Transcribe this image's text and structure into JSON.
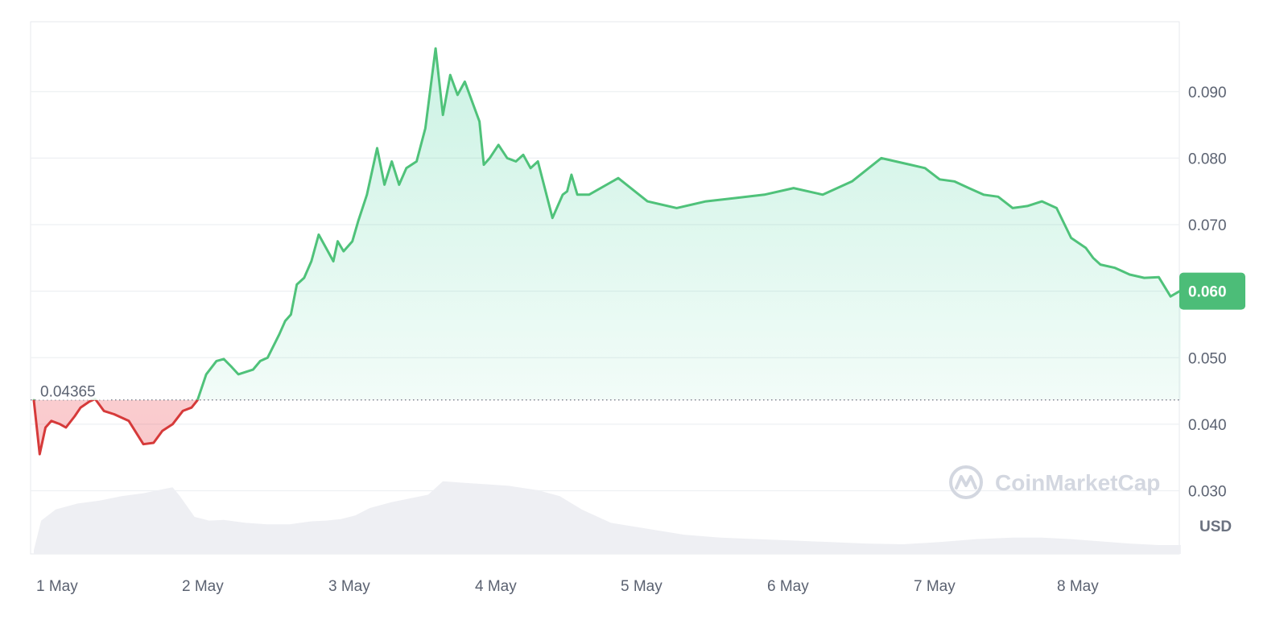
{
  "chart_data": {
    "type": "area",
    "x_tick_labels": [
      "1 May",
      "2 May",
      "3 May",
      "4 May",
      "5 May",
      "6 May",
      "7 May",
      "8 May"
    ],
    "y_ticks": [
      0.03,
      0.04,
      0.05,
      0.06,
      0.07,
      0.08,
      0.09
    ],
    "y_tick_labels": [
      "0.030",
      "0.040",
      "0.050",
      "0.060",
      "0.070",
      "0.080",
      "0.090"
    ],
    "ylim": [
      0.0205,
      0.1005
    ],
    "xlim": [
      0.0,
      7.85
    ],
    "unit_label": "USD",
    "baseline": {
      "value": 0.04365,
      "label": "0.04365"
    },
    "current_price": {
      "value": 0.06,
      "label": "0.060"
    },
    "watermark": "CoinMarketCap",
    "grid": true,
    "colors": {
      "up": "#16c784",
      "up_line": "#4fc27a",
      "down": "#d63a3a",
      "tag": "#4cbd78"
    },
    "price_series": {
      "x": [
        0.0,
        0.04,
        0.08,
        0.12,
        0.18,
        0.22,
        0.28,
        0.32,
        0.38,
        0.42,
        0.48,
        0.55,
        0.65,
        0.75,
        0.82,
        0.88,
        0.95,
        1.02,
        1.08,
        1.12,
        1.18,
        1.25,
        1.3,
        1.35,
        1.4,
        1.5,
        1.55,
        1.6,
        1.68,
        1.72,
        1.76,
        1.8,
        1.85,
        1.9,
        1.95,
        2.0,
        2.05,
        2.08,
        2.12,
        2.18,
        2.22,
        2.28,
        2.35,
        2.4,
        2.45,
        2.5,
        2.55,
        2.62,
        2.68,
        2.75,
        2.8,
        2.85,
        2.9,
        2.95,
        3.0,
        3.05,
        3.08,
        3.12,
        3.18,
        3.24,
        3.3,
        3.35,
        3.4,
        3.45,
        3.55,
        3.62,
        3.65,
        3.68,
        3.72,
        3.8,
        4.0,
        4.2,
        4.4,
        4.6,
        4.8,
        5.0,
        5.2,
        5.4,
        5.6,
        5.8,
        6.0,
        6.1,
        6.2,
        6.3,
        6.4,
        6.5,
        6.6,
        6.7,
        6.8,
        6.9,
        7.0,
        7.1,
        7.2,
        7.25,
        7.3,
        7.4,
        7.5,
        7.6,
        7.7,
        7.78,
        7.85
      ],
      "y": [
        0.0436,
        0.0355,
        0.0395,
        0.0405,
        0.04,
        0.0395,
        0.0412,
        0.0425,
        0.0434,
        0.0438,
        0.042,
        0.0415,
        0.0405,
        0.037,
        0.0372,
        0.039,
        0.04,
        0.042,
        0.0425,
        0.0436,
        0.0475,
        0.0495,
        0.0498,
        0.0487,
        0.0475,
        0.0482,
        0.0495,
        0.05,
        0.0535,
        0.0555,
        0.0565,
        0.061,
        0.062,
        0.0645,
        0.0685,
        0.0665,
        0.0645,
        0.0675,
        0.066,
        0.0675,
        0.0705,
        0.0745,
        0.0815,
        0.076,
        0.0795,
        0.076,
        0.0785,
        0.0795,
        0.0845,
        0.0965,
        0.0865,
        0.0925,
        0.0895,
        0.0915,
        0.0885,
        0.0855,
        0.079,
        0.08,
        0.082,
        0.08,
        0.0795,
        0.0805,
        0.0785,
        0.0795,
        0.071,
        0.0745,
        0.075,
        0.0775,
        0.0745,
        0.0745,
        0.077,
        0.0735,
        0.0725,
        0.0735,
        0.074,
        0.0745,
        0.0755,
        0.0745,
        0.0765,
        0.08,
        0.079,
        0.0785,
        0.0768,
        0.0765,
        0.0755,
        0.0745,
        0.0742,
        0.0725,
        0.0728,
        0.0735,
        0.0725,
        0.068,
        0.0665,
        0.065,
        0.064,
        0.0635,
        0.0625,
        0.062,
        0.0621,
        0.0592,
        0.0601
      ]
    },
    "volume_series": {
      "note": "relative trading volume, unitless",
      "x": [
        0.0,
        0.05,
        0.15,
        0.3,
        0.45,
        0.6,
        0.75,
        0.85,
        0.95,
        1.0,
        1.1,
        1.2,
        1.3,
        1.45,
        1.6,
        1.75,
        1.9,
        2.0,
        2.1,
        2.2,
        2.3,
        2.45,
        2.6,
        2.7,
        2.8,
        2.95,
        3.1,
        3.25,
        3.45,
        3.6,
        3.75,
        3.95,
        4.2,
        4.45,
        4.7,
        4.95,
        5.2,
        5.45,
        5.7,
        5.95,
        6.2,
        6.45,
        6.7,
        6.9,
        7.1,
        7.3,
        7.5,
        7.7,
        7.85
      ],
      "y": [
        0.05,
        0.45,
        0.6,
        0.68,
        0.72,
        0.78,
        0.82,
        0.86,
        0.9,
        0.78,
        0.5,
        0.45,
        0.46,
        0.42,
        0.4,
        0.4,
        0.44,
        0.45,
        0.47,
        0.52,
        0.62,
        0.7,
        0.76,
        0.8,
        0.98,
        0.96,
        0.94,
        0.92,
        0.86,
        0.78,
        0.6,
        0.42,
        0.34,
        0.26,
        0.22,
        0.2,
        0.18,
        0.16,
        0.14,
        0.13,
        0.16,
        0.2,
        0.22,
        0.22,
        0.2,
        0.17,
        0.14,
        0.12,
        0.12
      ]
    }
  }
}
